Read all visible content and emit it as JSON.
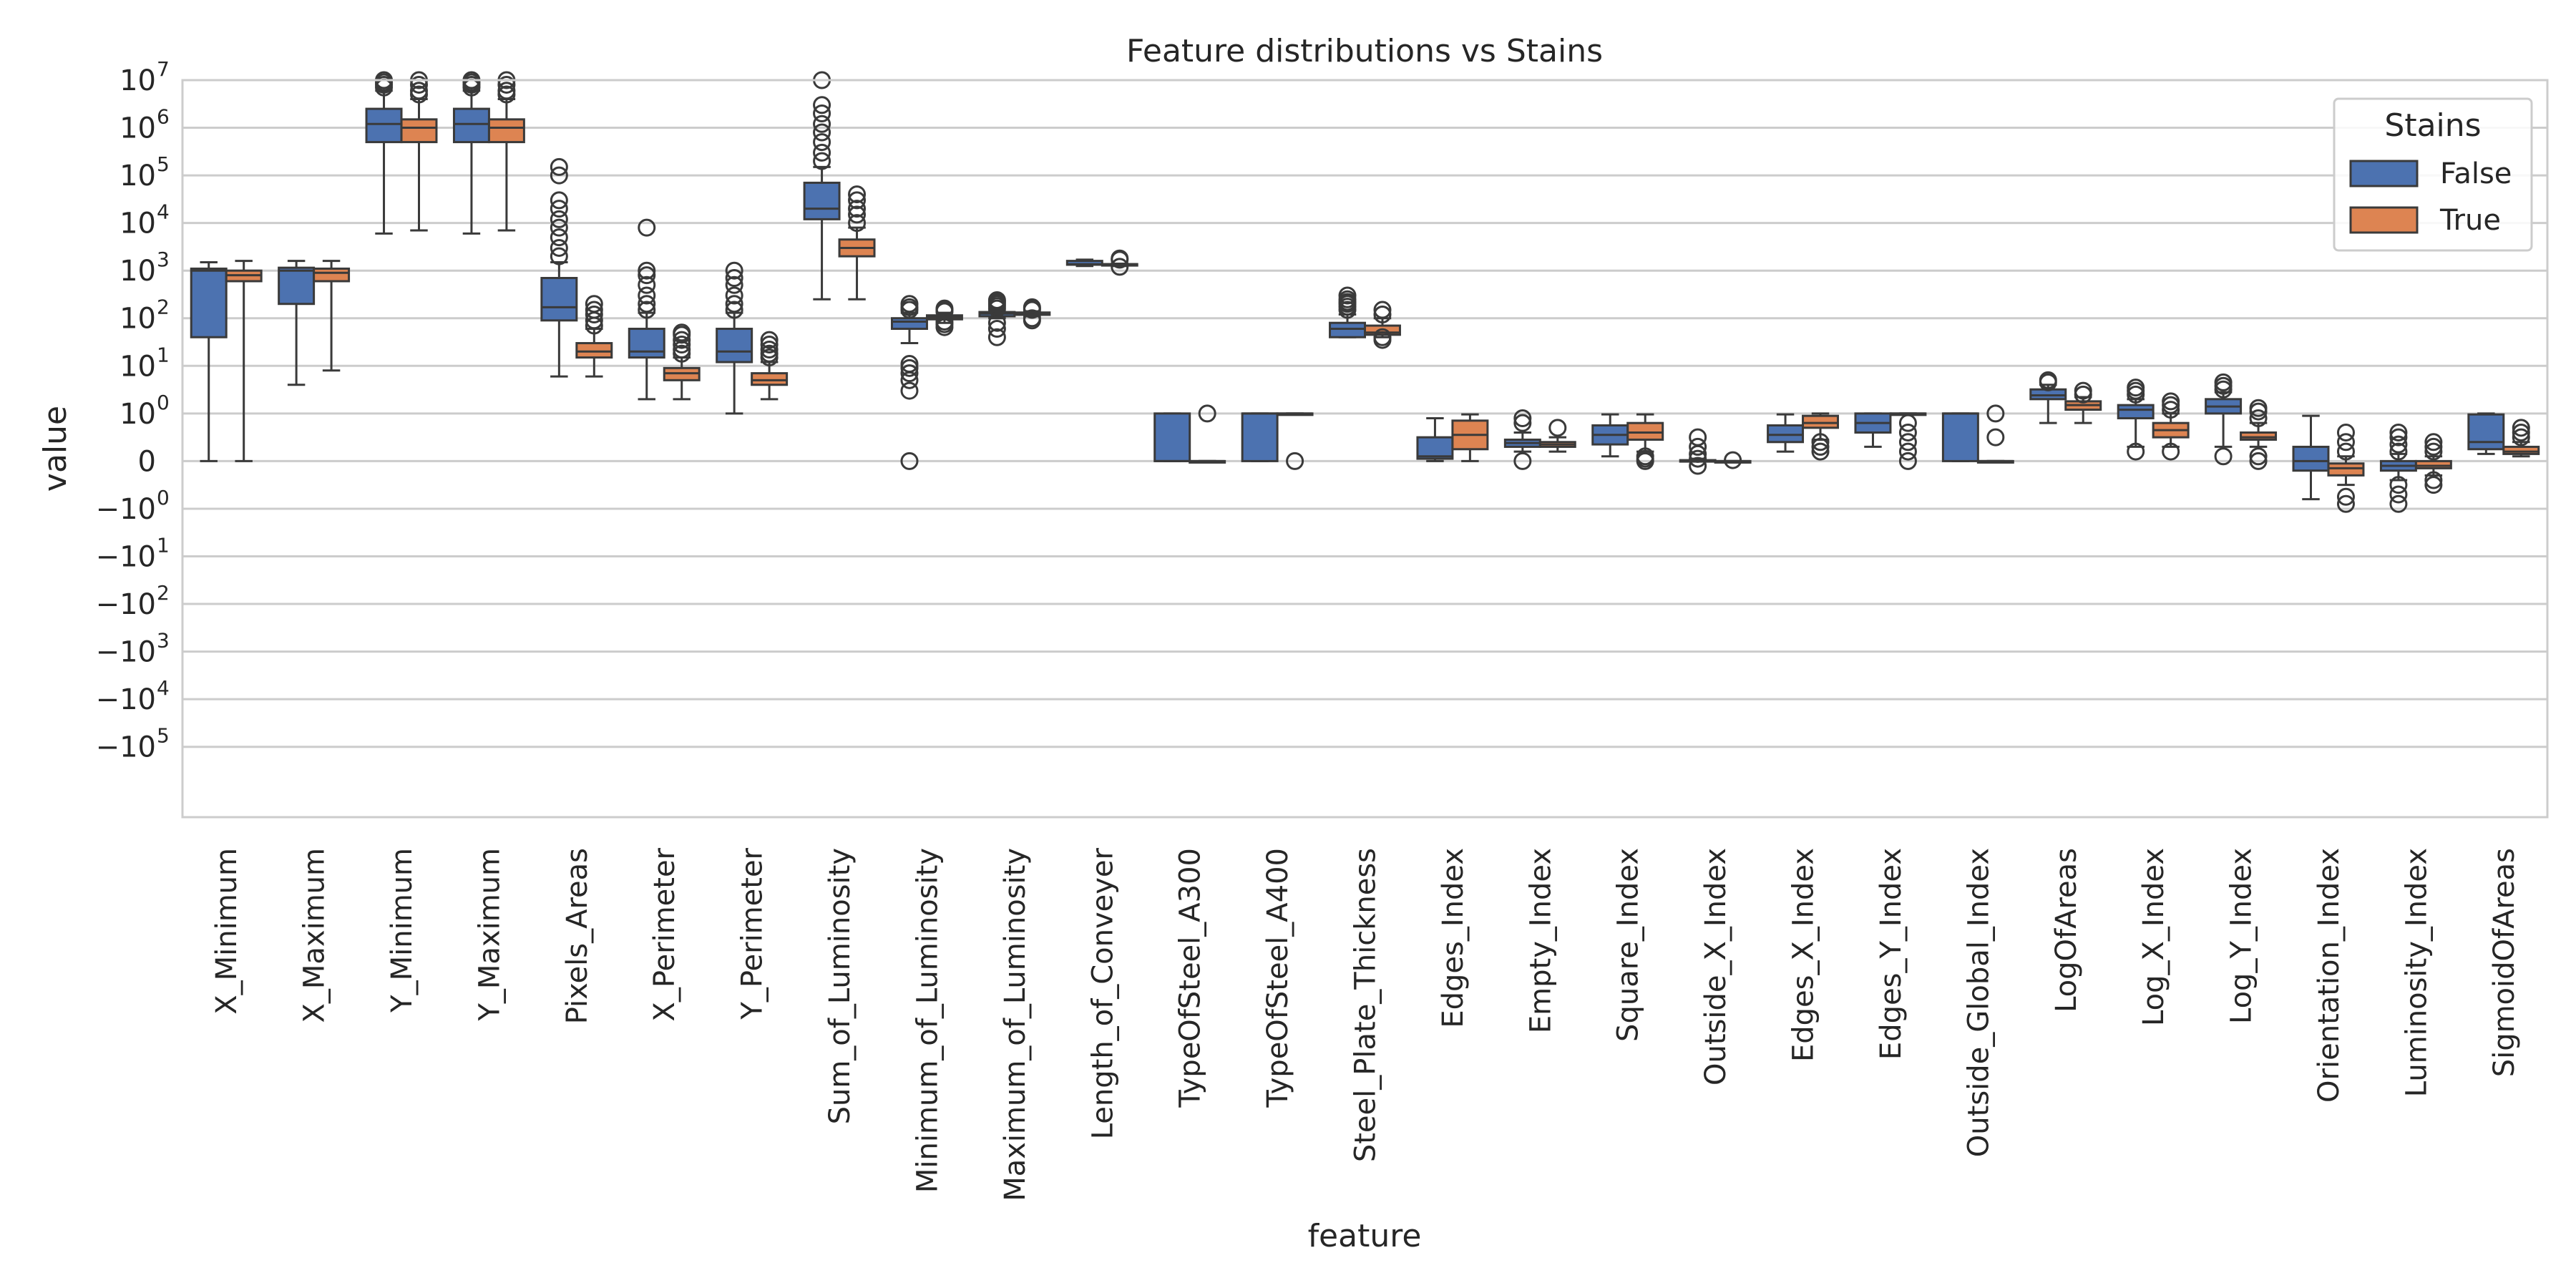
{
  "chart_data": {
    "type": "box",
    "title": "Feature distributions vs Stains",
    "xlabel": "feature",
    "ylabel": "value",
    "yscale": "symlog",
    "ylim": [
      -3000000,
      10000000
    ],
    "y_ticks": [
      {
        "label": "10",
        "exp": "7",
        "value": 10000000
      },
      {
        "label": "10",
        "exp": "6",
        "value": 1000000
      },
      {
        "label": "10",
        "exp": "5",
        "value": 100000
      },
      {
        "label": "10",
        "exp": "4",
        "value": 10000
      },
      {
        "label": "10",
        "exp": "3",
        "value": 1000
      },
      {
        "label": "10",
        "exp": "2",
        "value": 100
      },
      {
        "label": "10",
        "exp": "1",
        "value": 10
      },
      {
        "label": "10",
        "exp": "0",
        "value": 1
      },
      {
        "label": "0",
        "exp": "",
        "value": 0
      },
      {
        "label": "−10",
        "exp": "0",
        "value": -1
      },
      {
        "label": "−10",
        "exp": "1",
        "value": -10
      },
      {
        "label": "−10",
        "exp": "2",
        "value": -100
      },
      {
        "label": "−10",
        "exp": "3",
        "value": -1000
      },
      {
        "label": "−10",
        "exp": "4",
        "value": -10000
      },
      {
        "label": "−10",
        "exp": "5",
        "value": -100000
      }
    ],
    "grid": true,
    "legend": {
      "title": "Stains",
      "position": "top-right"
    },
    "series": [
      {
        "name": "False",
        "color": "#4c72b0"
      },
      {
        "name": "True",
        "color": "#dd8452"
      }
    ],
    "categories": [
      "X_Minimum",
      "X_Maximum",
      "Y_Minimum",
      "Y_Maximum",
      "Pixels_Areas",
      "X_Perimeter",
      "Y_Perimeter",
      "Sum_of_Luminosity",
      "Minimum_of_Luminosity",
      "Maximum_of_Luminosity",
      "Length_of_Conveyer",
      "TypeOfSteel_A300",
      "TypeOfSteel_A400",
      "Steel_Plate_Thickness",
      "Edges_Index",
      "Empty_Index",
      "Square_Index",
      "Outside_X_Index",
      "Edges_X_Index",
      "Edges_Y_Index",
      "Outside_Global_Index",
      "LogOfAreas",
      "Log_X_Index",
      "Log_Y_Index",
      "Orientation_Index",
      "Luminosity_Index",
      "SigmoidOfAreas"
    ],
    "boxes": [
      [
        {
          "wl": 0,
          "q1": 40,
          "med": 1000,
          "q3": 1100,
          "wh": 1500,
          "out": []
        },
        {
          "wl": 0,
          "q1": 600,
          "med": 800,
          "q3": 1000,
          "wh": 1600,
          "out": []
        }
      ],
      [
        {
          "wl": 4,
          "q1": 200,
          "med": 1000,
          "q3": 1150,
          "wh": 1600,
          "out": []
        },
        {
          "wl": 8,
          "q1": 600,
          "med": 900,
          "q3": 1100,
          "wh": 1600,
          "out": []
        }
      ],
      [
        {
          "wl": 6000,
          "q1": 500000,
          "med": 1200000,
          "q3": 2500000,
          "wh": 6000000,
          "out": [
            7000000,
            8000000,
            9000000,
            10000000
          ]
        },
        {
          "wl": 7000,
          "q1": 500000,
          "med": 1000000,
          "q3": 1500000,
          "wh": 4000000,
          "out": [
            5000000,
            6000000,
            8000000,
            10000000
          ]
        }
      ],
      [
        {
          "wl": 6000,
          "q1": 500000,
          "med": 1200000,
          "q3": 2500000,
          "wh": 6000000,
          "out": [
            7000000,
            8000000,
            9000000,
            10000000
          ]
        },
        {
          "wl": 7000,
          "q1": 500000,
          "med": 1000000,
          "q3": 1500000,
          "wh": 4000000,
          "out": [
            5000000,
            6000000,
            8000000,
            10000000
          ]
        }
      ],
      [
        {
          "wl": 6,
          "q1": 90,
          "med": 170,
          "q3": 700,
          "wh": 1500,
          "out": [
            2000,
            3000,
            5000,
            8000,
            12000,
            20000,
            30000,
            100000,
            150000
          ]
        },
        {
          "wl": 6,
          "q1": 15,
          "med": 20,
          "q3": 30,
          "wh": 60,
          "out": [
            70,
            90,
            120,
            150,
            200
          ]
        }
      ],
      [
        {
          "wl": 2,
          "q1": 15,
          "med": 20,
          "q3": 60,
          "wh": 130,
          "out": [
            150,
            200,
            300,
            500,
            800,
            1000,
            8000
          ]
        },
        {
          "wl": 2,
          "q1": 5,
          "med": 7,
          "q3": 9,
          "wh": 15,
          "out": [
            18,
            22,
            28,
            35,
            45,
            50
          ]
        }
      ],
      [
        {
          "wl": 1,
          "q1": 12,
          "med": 20,
          "q3": 60,
          "wh": 130,
          "out": [
            150,
            200,
            300,
            500,
            700,
            1000
          ]
        },
        {
          "wl": 2,
          "q1": 4,
          "med": 5,
          "q3": 7,
          "wh": 12,
          "out": [
            15,
            18,
            22,
            28,
            35
          ]
        }
      ],
      [
        {
          "wl": 250,
          "q1": 12000,
          "med": 20000,
          "q3": 70000,
          "wh": 150000,
          "out": [
            200000,
            300000,
            500000,
            800000,
            1200000,
            2000000,
            3000000,
            10000000
          ]
        },
        {
          "wl": 250,
          "q1": 2000,
          "med": 3000,
          "q3": 4500,
          "wh": 8000,
          "out": [
            10000,
            15000,
            20000,
            30000,
            40000
          ]
        }
      ],
      [
        {
          "wl": 30,
          "q1": 60,
          "med": 85,
          "q3": 100,
          "wh": 130,
          "out": [
            0,
            3,
            5,
            7,
            9,
            11,
            150,
            170,
            200
          ]
        },
        {
          "wl": 80,
          "q1": 95,
          "med": 105,
          "q3": 115,
          "wh": 130,
          "out": [
            65,
            75,
            85,
            140,
            150,
            160
          ]
        }
      ],
      [
        {
          "wl": 100,
          "q1": 110,
          "med": 125,
          "q3": 135,
          "wh": 145,
          "out": [
            40,
            60,
            80,
            160,
            180,
            200,
            220,
            240
          ]
        },
        {
          "wl": 110,
          "q1": 118,
          "med": 125,
          "q3": 132,
          "wh": 140,
          "out": [
            90,
            100,
            150,
            160,
            170
          ]
        }
      ],
      [
        {
          "wl": 1250,
          "q1": 1330,
          "med": 1360,
          "q3": 1600,
          "wh": 1700,
          "out": []
        },
        {
          "wl": 1250,
          "q1": 1340,
          "med": 1360,
          "q3": 1370,
          "wh": 1400,
          "out": [
            1200,
            1700,
            1800
          ]
        }
      ],
      [
        {
          "wl": 0,
          "q1": 0,
          "med": 0,
          "q3": 1,
          "wh": 1,
          "out": []
        },
        {
          "wl": 0,
          "q1": 0,
          "med": 0,
          "q3": 0,
          "wh": 0,
          "out": [
            1
          ]
        }
      ],
      [
        {
          "wl": 0,
          "q1": 0,
          "med": 1,
          "q3": 1,
          "wh": 1,
          "out": []
        },
        {
          "wl": 1,
          "q1": 1,
          "med": 1,
          "q3": 1,
          "wh": 1,
          "out": [
            0
          ]
        }
      ],
      [
        {
          "wl": 40,
          "q1": 40,
          "med": 60,
          "q3": 80,
          "wh": 120,
          "out": [
            150,
            175,
            200,
            220,
            250,
            300
          ]
        },
        {
          "wl": 40,
          "q1": 45,
          "med": 50,
          "q3": 70,
          "wh": 100,
          "out": [
            35,
            40,
            120,
            150
          ]
        }
      ],
      [
        {
          "wl": 0,
          "q1": 0.05,
          "med": 0.1,
          "q3": 0.5,
          "wh": 0.9,
          "out": []
        },
        {
          "wl": 0,
          "q1": 0.25,
          "med": 0.55,
          "q3": 0.85,
          "wh": 0.98,
          "out": []
        }
      ],
      [
        {
          "wl": 0.2,
          "q1": 0.3,
          "med": 0.38,
          "q3": 0.45,
          "wh": 0.6,
          "out": [
            0,
            0.8,
            0.9
          ]
        },
        {
          "wl": 0.2,
          "q1": 0.3,
          "med": 0.35,
          "q3": 0.4,
          "wh": 0.5,
          "out": [
            0.7
          ]
        }
      ],
      [
        {
          "wl": 0.1,
          "q1": 0.35,
          "med": 0.55,
          "q3": 0.75,
          "wh": 0.98,
          "out": []
        },
        {
          "wl": 0.2,
          "q1": 0.45,
          "med": 0.6,
          "q3": 0.8,
          "wh": 0.98,
          "out": [
            0,
            0.05,
            0.1
          ]
        }
      ],
      [
        {
          "wl": 0,
          "q1": 0,
          "med": 0.01,
          "q3": 0.02,
          "wh": 0.05,
          "out": [
            -0.1,
            0.05,
            0.15,
            0.3,
            0.5
          ]
        },
        {
          "wl": 0,
          "q1": 0,
          "med": 0,
          "q3": 0,
          "wh": 0,
          "out": [
            0.02
          ]
        }
      ],
      [
        {
          "wl": 0.2,
          "q1": 0.4,
          "med": 0.55,
          "q3": 0.75,
          "wh": 0.98,
          "out": []
        },
        {
          "wl": 0.45,
          "q1": 0.7,
          "med": 0.8,
          "q3": 0.95,
          "wh": 1,
          "out": [
            0.2,
            0.3,
            0.4
          ]
        }
      ],
      [
        {
          "wl": 0.3,
          "q1": 0.6,
          "med": 0.8,
          "q3": 1,
          "wh": 1,
          "out": []
        },
        {
          "wl": 1,
          "q1": 1,
          "med": 1,
          "q3": 1,
          "wh": 1,
          "out": [
            0,
            0.2,
            0.4,
            0.6,
            0.8
          ]
        }
      ],
      [
        {
          "wl": 0,
          "q1": 0,
          "med": 1,
          "q3": 1,
          "wh": 1,
          "out": []
        },
        {
          "wl": 0,
          "q1": 0,
          "med": 0,
          "q3": 0,
          "wh": 0,
          "out": [
            0.5,
            1
          ]
        }
      ],
      [
        {
          "wl": 0.8,
          "q1": 2.0,
          "med": 2.4,
          "q3": 3.2,
          "wh": 4,
          "out": [
            4.5,
            5.0
          ]
        },
        {
          "wl": 0.8,
          "q1": 1.2,
          "med": 1.5,
          "q3": 1.8,
          "wh": 2.2,
          "out": [
            2.5,
            3
          ]
        }
      ],
      [
        {
          "wl": 0.3,
          "q1": 0.9,
          "med": 1.2,
          "q3": 1.5,
          "wh": 2,
          "out": [
            0.2,
            2.5,
            3,
            3.5
          ]
        },
        {
          "wl": 0.3,
          "q1": 0.5,
          "med": 0.65,
          "q3": 0.8,
          "wh": 1,
          "out": [
            0.2,
            1.2,
            1.5,
            1.8
          ]
        }
      ],
      [
        {
          "wl": 0.3,
          "q1": 1,
          "med": 1.4,
          "q3": 2,
          "wh": 2.8,
          "out": [
            0.1,
            3.2,
            3.8,
            4.5
          ]
        },
        {
          "wl": 0.3,
          "q1": 0.45,
          "med": 0.5,
          "q3": 0.6,
          "wh": 0.8,
          "out": [
            0,
            0.1,
            0.9,
            1.1,
            1.3
          ]
        }
      ],
      [
        {
          "wl": -0.8,
          "q1": -0.2,
          "med": 0,
          "q3": 0.3,
          "wh": 0.95,
          "out": []
        },
        {
          "wl": -0.5,
          "q1": -0.3,
          "med": -0.15,
          "q3": -0.05,
          "wh": 0.1,
          "out": [
            -0.9,
            -0.75,
            0.2,
            0.4,
            0.6
          ]
        }
      ],
      [
        {
          "wl": -0.4,
          "q1": -0.2,
          "med": -0.1,
          "q3": 0,
          "wh": 0.15,
          "out": [
            -0.9,
            -0.7,
            -0.5,
            0.2,
            0.35,
            0.5,
            0.6
          ]
        },
        {
          "wl": -0.3,
          "q1": -0.15,
          "med": -0.1,
          "q3": 0,
          "wh": 0.1,
          "out": [
            -0.5,
            -0.4,
            0.2,
            0.3,
            0.4
          ]
        }
      ],
      [
        {
          "wl": 0.15,
          "q1": 0.25,
          "med": 0.4,
          "q3": 0.98,
          "wh": 1,
          "out": []
        },
        {
          "wl": 0.1,
          "q1": 0.15,
          "med": 0.2,
          "q3": 0.3,
          "wh": 0.4,
          "out": [
            0.5,
            0.6,
            0.7
          ]
        }
      ]
    ]
  }
}
